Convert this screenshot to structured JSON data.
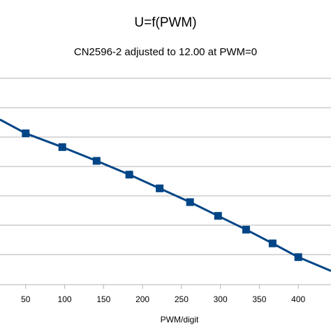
{
  "chart_data": {
    "type": "line",
    "title": "U=f(PWM)",
    "subtitle": "CN2596-2 adjusted to 12.00 at PWM=0",
    "xlabel": "PWM/digit",
    "ylabel": "",
    "x_ticks": [
      50,
      100,
      150,
      200,
      250,
      300,
      350,
      400
    ],
    "xlim": [
      17,
      442
    ],
    "ylim": [
      0,
      7.5
    ],
    "grid": true,
    "series": [
      {
        "color": "#004586",
        "x": [
          17,
          50,
          97,
          141,
          183,
          222,
          261,
          297,
          333,
          367,
          400,
          442
        ],
        "y": [
          6.0,
          5.5,
          5.0,
          4.5,
          4.0,
          3.5,
          3.0,
          2.5,
          2.0,
          1.5,
          1.0,
          0.5
        ],
        "markers_from_index": 1,
        "markers_to_index": 10
      }
    ]
  }
}
